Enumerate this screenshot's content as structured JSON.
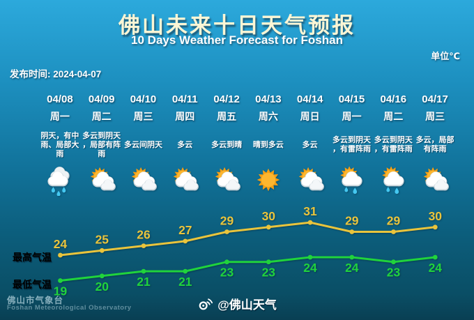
{
  "header": {
    "title": "佛山未来十日天气预报",
    "subtitle": "10 Days Weather Forecast for Foshan",
    "unit": "单位℃",
    "release": "发布时间: 2024-04-07"
  },
  "days": [
    {
      "date": "04/08",
      "week": "周一",
      "desc": "阴天，有中雨、局部大雨",
      "icon": "rain"
    },
    {
      "date": "04/09",
      "week": "周二",
      "desc": "多云到阴天，局部有阵雨",
      "icon": "sun-cloud"
    },
    {
      "date": "04/10",
      "week": "周三",
      "desc": "多云间阴天",
      "icon": "sun-cloud"
    },
    {
      "date": "04/11",
      "week": "周四",
      "desc": "多云",
      "icon": "sun-cloud"
    },
    {
      "date": "04/12",
      "week": "周五",
      "desc": "多云到晴",
      "icon": "sun-cloud"
    },
    {
      "date": "04/13",
      "week": "周六",
      "desc": "晴到多云",
      "icon": "sun"
    },
    {
      "date": "04/14",
      "week": "周日",
      "desc": "多云",
      "icon": "sun-cloud"
    },
    {
      "date": "04/15",
      "week": "周一",
      "desc": "多云到阴天，有雷阵雨",
      "icon": "sun-cloud-rain"
    },
    {
      "date": "04/16",
      "week": "周二",
      "desc": "多云到阴天，有雷阵雨",
      "icon": "sun-cloud-rain"
    },
    {
      "date": "04/17",
      "week": "周三",
      "desc": "多云，局部有阵雨",
      "icon": "sun-cloud"
    }
  ],
  "series_labels": {
    "high": "最高气温",
    "low": "最低气温"
  },
  "footer": {
    "org_cn": "佛山市气象台",
    "org_en": "Foshan Meteorological Observatory",
    "weibo_handle": "@佛山天气"
  },
  "colors": {
    "high": "#E9C43C",
    "low": "#20D33C",
    "bg_top": "#2CA9DC",
    "bg_bottom": "#093F53",
    "title": "#FCF6D5",
    "sun": "#F49F15",
    "drop": "#45C8F1"
  },
  "chart_data": {
    "type": "line",
    "title": "佛山未来十日天气预报",
    "subtitle": "10 Days Weather Forecast for Foshan",
    "unit": "℃",
    "categories": [
      "04/08",
      "04/09",
      "04/10",
      "04/11",
      "04/12",
      "04/13",
      "04/14",
      "04/15",
      "04/16",
      "04/17"
    ],
    "weekday_labels": [
      "周一",
      "周二",
      "周三",
      "周四",
      "周五",
      "周六",
      "周日",
      "周一",
      "周二",
      "周三"
    ],
    "conditions": [
      "阴天，有中雨、局部大雨",
      "多云到阴天，局部有阵雨",
      "多云间阴天",
      "多云",
      "多云到晴",
      "晴到多云",
      "多云",
      "多云到阴天，有雷阵雨",
      "多云到阴天，有雷阵雨",
      "多云，局部有阵雨"
    ],
    "icon_names": [
      "rain",
      "sun-cloud",
      "sun-cloud",
      "sun-cloud",
      "sun-cloud",
      "sun",
      "sun-cloud",
      "sun-cloud-rain",
      "sun-cloud-rain",
      "sun-cloud"
    ],
    "series": [
      {
        "name": "最高气温",
        "values": [
          24,
          25,
          26,
          27,
          29,
          30,
          31,
          29,
          29,
          30
        ],
        "color": "#E9C43C"
      },
      {
        "name": "最低气温",
        "values": [
          19,
          20,
          21,
          21,
          23,
          23,
          24,
          24,
          23,
          24
        ],
        "color": "#20D33C"
      }
    ],
    "ylim": [
      17,
      33
    ],
    "grid": false,
    "legend_position": "left",
    "data_labels": true
  }
}
